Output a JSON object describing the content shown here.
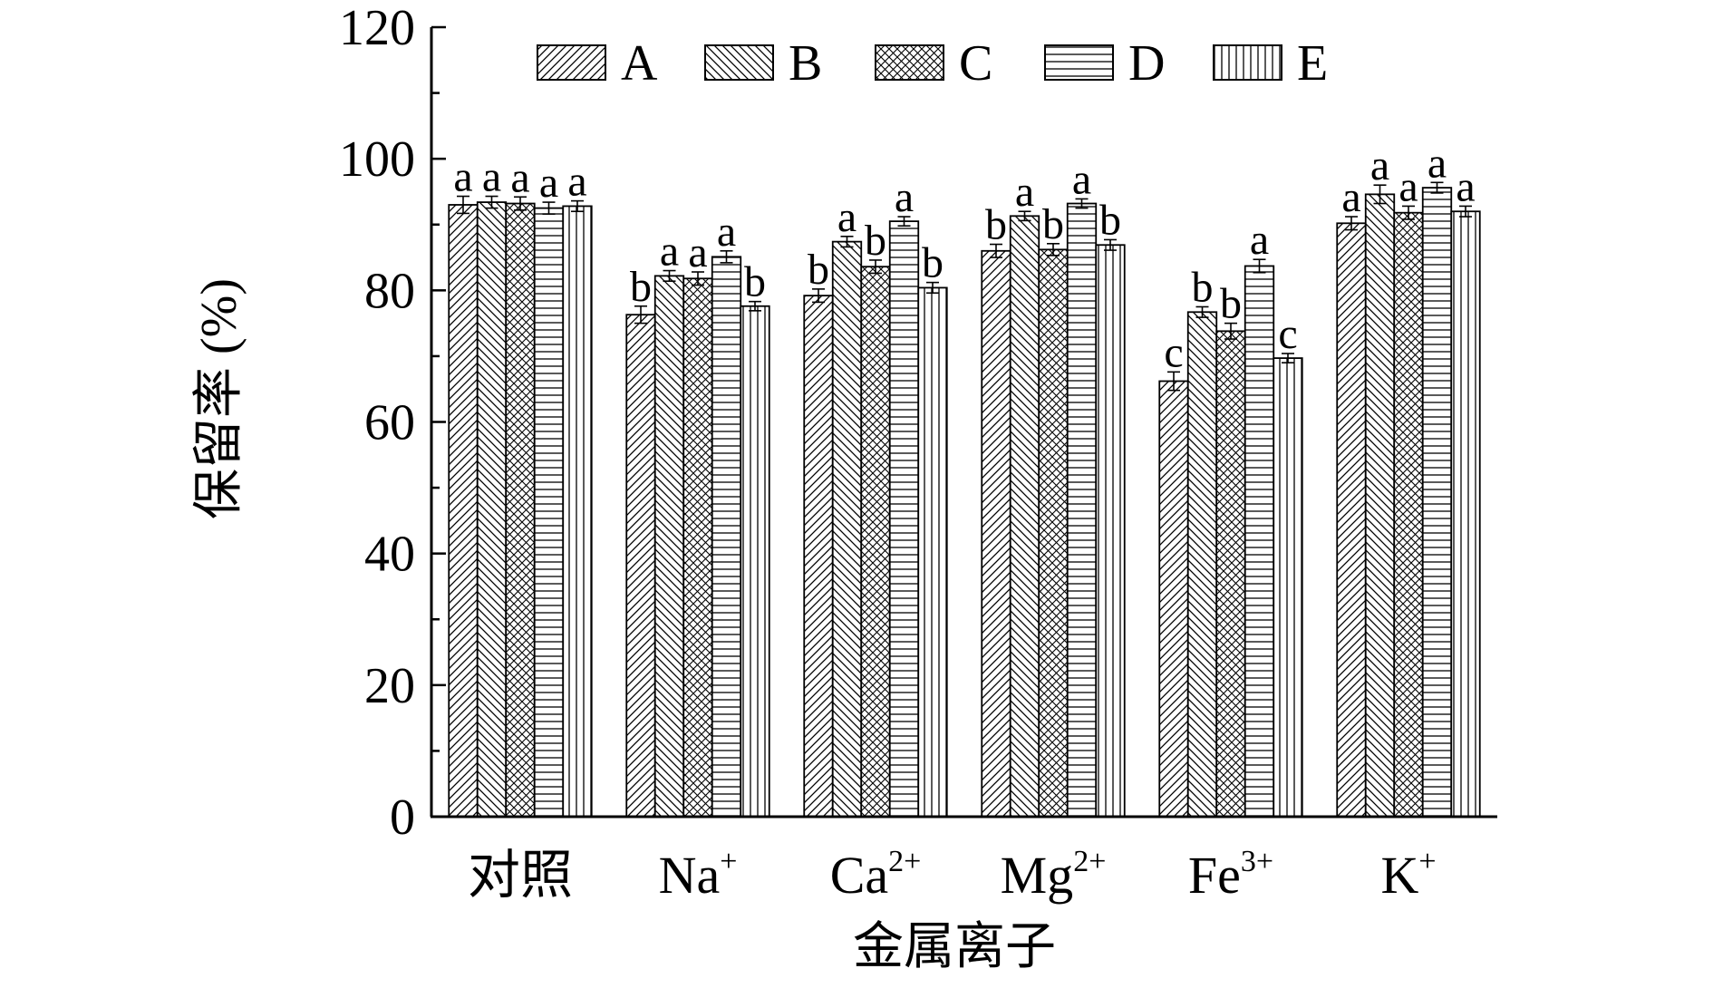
{
  "chart_data": {
    "type": "bar",
    "title": "",
    "xlabel": "金属离子",
    "ylabel": "保留率 (%)",
    "ylim": [
      0,
      120
    ],
    "yticks": [
      "0",
      "20",
      "40",
      "60",
      "80",
      "100",
      "120"
    ],
    "categories": [
      {
        "base": "对照",
        "sup": ""
      },
      {
        "base": "Na",
        "sup": "+"
      },
      {
        "base": "Ca",
        "sup": "2+"
      },
      {
        "base": "Mg",
        "sup": "2+"
      },
      {
        "base": "Fe",
        "sup": "3+"
      },
      {
        "base": "K",
        "sup": "+"
      }
    ],
    "legend_position": "top",
    "grid": false,
    "series": [
      {
        "name": "A",
        "pattern": "diag-up",
        "values": [
          93,
          76.3,
          79.2,
          86,
          66.2,
          90.2
        ],
        "errors": [
          1.3,
          1.3,
          1.0,
          1.0,
          1.4,
          1.0
        ],
        "labels": [
          "a",
          "b",
          "b",
          "b",
          "c",
          "a"
        ]
      },
      {
        "name": "B",
        "pattern": "diag-down",
        "values": [
          93.4,
          82.2,
          87.4,
          91.3,
          76.7,
          94.6
        ],
        "errors": [
          0.9,
          0.8,
          0.8,
          0.7,
          0.8,
          1.4
        ],
        "labels": [
          "a",
          "a",
          "a",
          "a",
          "b",
          "a"
        ]
      },
      {
        "name": "C",
        "pattern": "crosshatch",
        "values": [
          93.2,
          81.8,
          83.6,
          86.2,
          73.8,
          91.8
        ],
        "errors": [
          1.0,
          1.0,
          1.0,
          0.9,
          1.2,
          1.0
        ],
        "labels": [
          "a",
          "a",
          "b",
          "b",
          "b",
          "a"
        ]
      },
      {
        "name": "D",
        "pattern": "horizontal",
        "values": [
          92.5,
          85.1,
          90.5,
          93.2,
          83.7,
          95.6
        ],
        "errors": [
          0.9,
          0.9,
          0.7,
          0.7,
          1.0,
          0.8
        ],
        "labels": [
          "a",
          "a",
          "a",
          "a",
          "a",
          "a"
        ]
      },
      {
        "name": "E",
        "pattern": "vertical",
        "values": [
          92.8,
          77.6,
          80.4,
          86.9,
          69.7,
          92
        ],
        "errors": [
          0.8,
          0.7,
          0.8,
          0.8,
          0.7,
          0.8
        ],
        "labels": [
          "a",
          "b",
          "b",
          "b",
          "c",
          "a"
        ]
      }
    ]
  }
}
